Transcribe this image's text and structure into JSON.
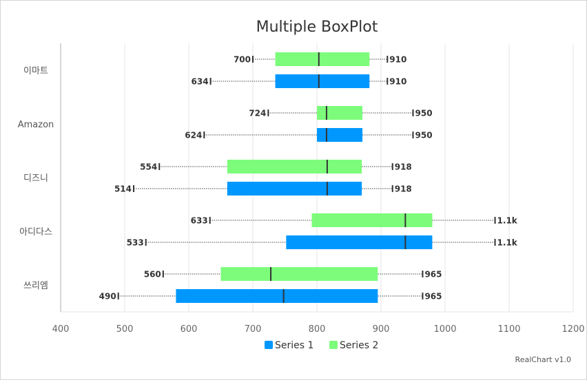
{
  "chart_data": {
    "type": "boxplot",
    "orientation": "horizontal",
    "title": "Multiple BoxPlot",
    "categories": [
      "이마트",
      "Amazon",
      "디즈니",
      "아디다스",
      "쓰리엠"
    ],
    "xlim": [
      400,
      1200
    ],
    "xticks": [
      400,
      500,
      600,
      700,
      800,
      900,
      1000,
      1100,
      1200
    ],
    "grid": true,
    "legend_position": "bottom",
    "series": [
      {
        "name": "Series 1",
        "color": "#0098ff",
        "boxes": [
          {
            "min": 634,
            "q1": 735,
            "median": 803,
            "q3": 882,
            "max": 910,
            "min_label": "634",
            "max_label": "910"
          },
          {
            "min": 624,
            "q1": 800,
            "median": 815,
            "q3": 871,
            "max": 950,
            "min_label": "624",
            "max_label": "950"
          },
          {
            "min": 514,
            "q1": 660,
            "median": 816,
            "q3": 870,
            "max": 918,
            "min_label": "514",
            "max_label": "918"
          },
          {
            "min": 533,
            "q1": 752,
            "median": 938,
            "q3": 980,
            "max": 1078,
            "min_label": "533",
            "max_label": "1.1k"
          },
          {
            "min": 490,
            "q1": 580,
            "median": 748,
            "q3": 895,
            "max": 965,
            "min_label": "490",
            "max_label": "965"
          }
        ]
      },
      {
        "name": "Series 2",
        "color": "#7dfc7b",
        "boxes": [
          {
            "min": 700,
            "q1": 735,
            "median": 803,
            "q3": 882,
            "max": 910,
            "min_label": "700",
            "max_label": "910"
          },
          {
            "min": 724,
            "q1": 800,
            "median": 815,
            "q3": 871,
            "max": 950,
            "min_label": "724",
            "max_label": "950"
          },
          {
            "min": 554,
            "q1": 660,
            "median": 816,
            "q3": 870,
            "max": 918,
            "min_label": "554",
            "max_label": "918"
          },
          {
            "min": 633,
            "q1": 792,
            "median": 938,
            "q3": 980,
            "max": 1078,
            "min_label": "633",
            "max_label": "1.1k"
          },
          {
            "min": 560,
            "q1": 650,
            "median": 728,
            "q3": 895,
            "max": 965,
            "min_label": "560",
            "max_label": "965"
          }
        ]
      }
    ]
  },
  "credit": "RealChart v1.0"
}
